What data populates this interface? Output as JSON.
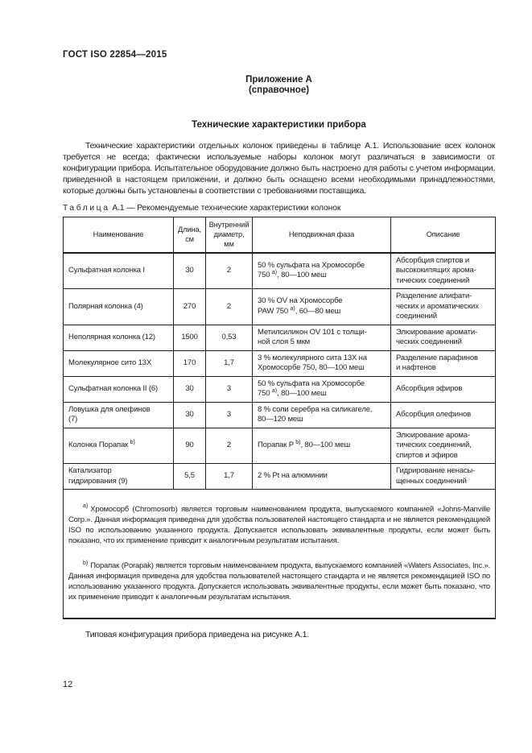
{
  "colors": {
    "background": "#ffffff",
    "text": "#1e1e1e",
    "table_border": "#1e1e1e"
  },
  "page": {
    "doc_code": "ГОСТ ISO 22854—2015",
    "appendix_label": "Приложение А",
    "appendix_type": "(справочное)",
    "section_title": "Технические характеристики прибора",
    "intro_paragraph": "Технические характеристики отдельных колонок приведены в таблице А.1. Использование всех колонок требуется не всегда; фактически используемые наборы колонок могут различаться в зависимости от конфигурации прибора. Испытательное оборудование должно быть настроено для работы с учетом информации, приведенной в настоящем приложении, и должно быть оснащено всеми необходимыми принадлежностями, которые должны быть установлены в соответствии с требованиями поставщика.",
    "closing_paragraph": "Типовая конфигурация прибора приведена на рисунке А.1.",
    "page_number": "12"
  },
  "table": {
    "caption_word": "Таблица",
    "caption_number": "А.1",
    "caption_rest": "— Рекомендуемые технические характеристики колонок",
    "headers": {
      "name": "Наименование",
      "length": "Длина,\nсм",
      "diameter": "Внутренний\nдиаметр,\nмм",
      "phase": "Неподвижная фаза",
      "description": "Описание"
    },
    "rows": [
      {
        "name_pre": "Сульфатная колонка I",
        "name_sup": "",
        "length": "30",
        "diameter": "2",
        "phase_pre": "50 % сульфата на Хромосорбе\n750 ",
        "phase_sup": "а)",
        "phase_post": ", 80—100 меш",
        "description": "Абсорбция спиртов и\nвысококипящих арома-\nтических соединений"
      },
      {
        "name_pre": "Полярная колонка (4)",
        "name_sup": "",
        "length": "270",
        "diameter": "2",
        "phase_pre": "30 % OV на Хромосорбе\nPAW 750 ",
        "phase_sup": "а)",
        "phase_post": ", 60—80 меш",
        "description": "Разделение алифати-\nческих и ароматических\nсоединений"
      },
      {
        "name_pre": "Неполярная колонка (12)",
        "name_sup": "",
        "length": "1500",
        "diameter": "0,53",
        "phase_pre": "Метилсиликон OV 101 с толщи-\nной слоя 5 мкм",
        "phase_sup": "",
        "phase_post": "",
        "description": "Элюирование аромати-\nческих соединений"
      },
      {
        "name_pre": "Молекулярное сито 13X",
        "name_sup": "",
        "length": "170",
        "diameter": "1,7",
        "phase_pre": "3 % молекулярного сита 13X на\nХромосорбе 750, 80—100 меш",
        "phase_sup": "",
        "phase_post": "",
        "description": "Разделение парафинов\nи нафтенов"
      },
      {
        "name_pre": "Сульфатная колонка II (6)",
        "name_sup": "",
        "length": "30",
        "diameter": "3",
        "phase_pre": "50 % сульфата на Хромосорбе\n750 ",
        "phase_sup": "а)",
        "phase_post": ", 80—100 меш",
        "description": "Абсорбция эфиров"
      },
      {
        "name_pre": "Ловушка для олефинов\n(7)",
        "name_sup": "",
        "length": "30",
        "diameter": "3",
        "phase_pre": "8 % соли серебра на силикагеле,\n80—120 меш",
        "phase_sup": "",
        "phase_post": "",
        "description": "Абсорбция олефинов"
      },
      {
        "name_pre": "Колонка Порапак ",
        "name_sup": "b)",
        "length": "90",
        "diameter": "2",
        "phase_pre": "Порапак P ",
        "phase_sup": "b)",
        "phase_post": ", 80—100 меш",
        "description": "Элюирование арома-\nтических соединений,\nспиртов и эфиров"
      },
      {
        "name_pre": "Катализатор\nгидрирования (9)",
        "name_sup": "",
        "length": "5,5",
        "diameter": "1,7",
        "phase_pre": "2 % Pt на алюминии",
        "phase_sup": "",
        "phase_post": "",
        "description": "Гидрирование ненасы-\nщенных соединений"
      }
    ],
    "footnotes": [
      {
        "marker": "а)",
        "text": "Хромосорб (Chromosorb) является торговым наименованием продукта, выпускаемого компанией «Johns-Manville Corp.». Данная информация приведена для удобства пользователей настоящего стандарта и не является рекомендацией ISO по использованию указанного продукта. Допускается использовать эквивалентные продукты, если может быть показано, что их применение приводит к аналогичным результатам испытания."
      },
      {
        "marker": "b)",
        "text": "Порапак (Porapak) является торговым наименованием продукта, выпускаемого компанией «Waters Associates, Inc.». Данная информация приведена для удобства пользователей настоящего стандарта и не является рекомендацией ISO по использованию указанного продукта. Допускается использовать эквивалентные продукты, если может быть показано, что их применение приводит к аналогичным результатам испытания."
      }
    ]
  }
}
